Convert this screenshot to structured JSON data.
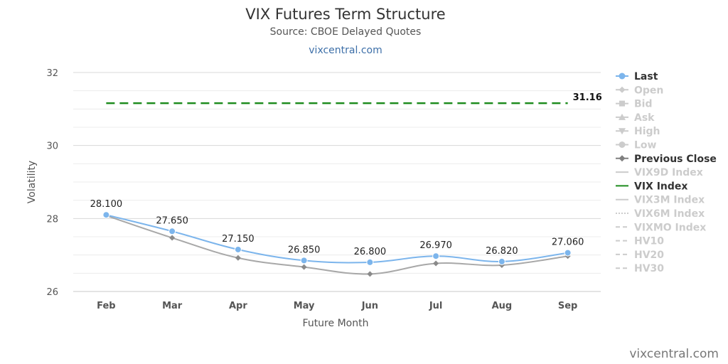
{
  "title": "VIX Futures Term Structure",
  "subtitle": "Source: CBOE Delayed Quotes",
  "link_text": "vixcentral.com",
  "credit": "vixcentral.com",
  "colors": {
    "last": "#7cb5ec",
    "previous_close": "#a8a8a8",
    "vix_index": "#1e8c1e",
    "legend_active": "#333333",
    "legend_inactive": "#cccccc",
    "grid": "#e6e6e6"
  },
  "chart_data": {
    "type": "line",
    "categories": [
      "Feb",
      "Mar",
      "Apr",
      "May",
      "Jun",
      "Jul",
      "Aug",
      "Sep"
    ],
    "xlabel": "Future Month",
    "ylabel": "Volatility",
    "ylim": [
      26,
      32
    ],
    "yticks": [
      26,
      28,
      30,
      32
    ],
    "grid": true,
    "legend_position": "right",
    "series": [
      {
        "name": "Last",
        "values": [
          28.1,
          27.65,
          27.15,
          26.85,
          26.8,
          26.97,
          26.82,
          27.06
        ],
        "labels": [
          "28.100",
          "27.650",
          "27.150",
          "26.850",
          "26.800",
          "26.970",
          "26.820",
          "27.060"
        ]
      },
      {
        "name": "Previous Close",
        "values": [
          28.08,
          27.47,
          26.92,
          26.67,
          26.48,
          26.77,
          26.72,
          26.97
        ]
      },
      {
        "name": "VIX Index",
        "value": 31.16,
        "label": "31.16"
      }
    ]
  },
  "legend": [
    {
      "name": "Last",
      "active": true,
      "symbol": "circle",
      "icon": "circle-line-icon"
    },
    {
      "name": "Open",
      "active": false,
      "symbol": "diamond",
      "icon": "diamond-line-icon"
    },
    {
      "name": "Bid",
      "active": false,
      "symbol": "square",
      "icon": "square-line-icon"
    },
    {
      "name": "Ask",
      "active": false,
      "symbol": "triangle",
      "icon": "triangle-line-icon"
    },
    {
      "name": "High",
      "active": false,
      "symbol": "triangle-down",
      "icon": "triangle-down-line-icon"
    },
    {
      "name": "Low",
      "active": false,
      "symbol": "circle",
      "icon": "circle-line-icon"
    },
    {
      "name": "Previous Close",
      "active": true,
      "symbol": "diamond",
      "icon": "diamond-line-icon"
    },
    {
      "name": "VIX9D Index",
      "active": false,
      "symbol": "solid",
      "icon": "solid-line-icon"
    },
    {
      "name": "VIX Index",
      "active": true,
      "symbol": "solid",
      "icon": "solid-line-icon"
    },
    {
      "name": "VIX3M Index",
      "active": false,
      "symbol": "solid",
      "icon": "solid-line-icon"
    },
    {
      "name": "VIX6M Index",
      "active": false,
      "symbol": "dotted",
      "icon": "dotted-line-icon"
    },
    {
      "name": "VIXMO Index",
      "active": false,
      "symbol": "dashed",
      "icon": "dashed-line-icon"
    },
    {
      "name": "HV10",
      "active": false,
      "symbol": "dashed",
      "icon": "dashed-line-icon"
    },
    {
      "name": "HV20",
      "active": false,
      "symbol": "dashed",
      "icon": "dashed-line-icon"
    },
    {
      "name": "HV30",
      "active": false,
      "symbol": "dashed",
      "icon": "dashed-line-icon"
    }
  ]
}
